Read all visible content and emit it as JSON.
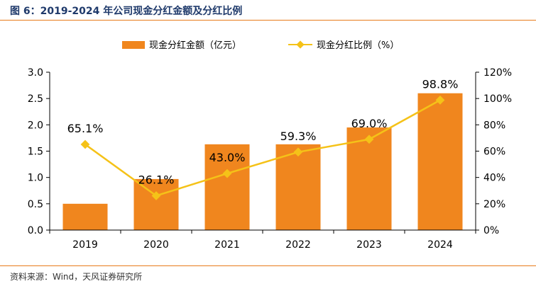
{
  "figure": {
    "title": "图 6：2019-2024 年公司现金分红金额及分红比例",
    "source": "资料来源：Wind，天风证券研究所"
  },
  "colors": {
    "bar": "#f0861e",
    "line": "#f5c218",
    "accent": "#e87a1a",
    "title": "#1f3a6b"
  },
  "chart_data": {
    "type": "bar",
    "categories": [
      "2019",
      "2020",
      "2021",
      "2022",
      "2023",
      "2024"
    ],
    "series": [
      {
        "name": "现金分红金额（亿元）",
        "type": "bar",
        "axis": "left",
        "values": [
          0.5,
          0.97,
          1.63,
          1.63,
          1.95,
          2.6
        ]
      },
      {
        "name": "现金分红比例（%）",
        "type": "line",
        "axis": "right",
        "values": [
          65.1,
          26.1,
          43.0,
          59.3,
          69.0,
          98.8
        ],
        "labels": [
          "65.1%",
          "26.1%",
          "43.0%",
          "59.3%",
          "69.0%",
          "98.8%"
        ]
      }
    ],
    "y_left": {
      "ylim": [
        0,
        3.0
      ],
      "ticks": [
        "0.0",
        "0.5",
        "1.0",
        "1.5",
        "2.0",
        "2.5",
        "3.0"
      ]
    },
    "y_right": {
      "ylim": [
        0,
        120
      ],
      "ticks": [
        "0%",
        "20%",
        "40%",
        "60%",
        "80%",
        "100%",
        "120%"
      ]
    },
    "legend": "top",
    "grid": false
  }
}
